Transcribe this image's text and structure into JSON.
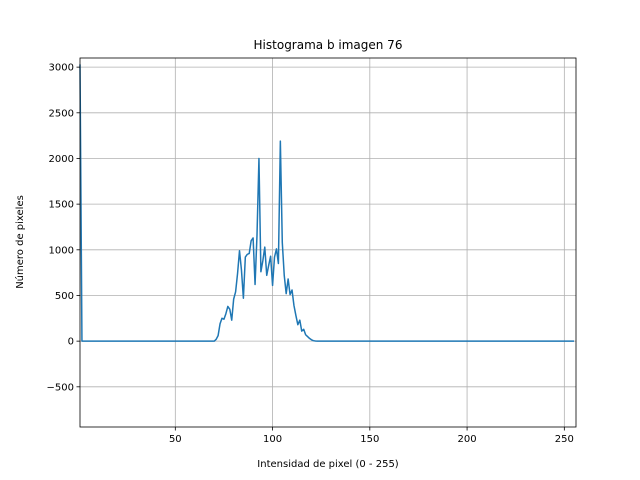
{
  "chart_data": {
    "type": "line",
    "title": "Histograma b imagen 76",
    "xlabel": "Intensidad de pixel (0 - 255)",
    "ylabel": "Número de pixeles",
    "xlim": [
      1,
      256
    ],
    "ylim": [
      -940,
      3100
    ],
    "xticks": [
      50,
      100,
      150,
      200,
      250
    ],
    "yticks": [
      -500,
      0,
      500,
      1000,
      1500,
      2000,
      2500,
      3000
    ],
    "grid": true,
    "series_color": "#1f77b4",
    "series": [
      {
        "x": [
          1,
          2,
          68,
          70,
          71,
          72,
          73,
          74,
          75,
          76,
          77,
          78,
          79,
          80,
          81,
          82,
          83,
          84,
          85,
          86,
          87,
          88,
          89,
          90,
          91,
          92,
          93,
          94,
          95,
          96,
          97,
          98,
          99,
          100,
          101,
          102,
          103,
          104,
          105,
          106,
          107,
          108,
          109,
          110,
          111,
          112,
          113,
          114,
          115,
          116,
          117,
          118,
          119,
          120,
          121,
          122,
          123,
          124,
          125,
          126,
          255
        ],
        "y": [
          3030,
          0,
          0,
          0,
          20,
          60,
          190,
          250,
          240,
          300,
          380,
          350,
          230,
          460,
          540,
          740,
          990,
          780,
          470,
          920,
          950,
          960,
          1100,
          1130,
          620,
          1160,
          2000,
          760,
          880,
          1030,
          720,
          830,
          930,
          610,
          920,
          1010,
          850,
          2190,
          1080,
          720,
          520,
          680,
          510,
          560,
          390,
          280,
          180,
          230,
          110,
          130,
          70,
          50,
          30,
          15,
          5,
          2,
          0,
          0,
          0,
          0,
          0
        ]
      }
    ]
  }
}
